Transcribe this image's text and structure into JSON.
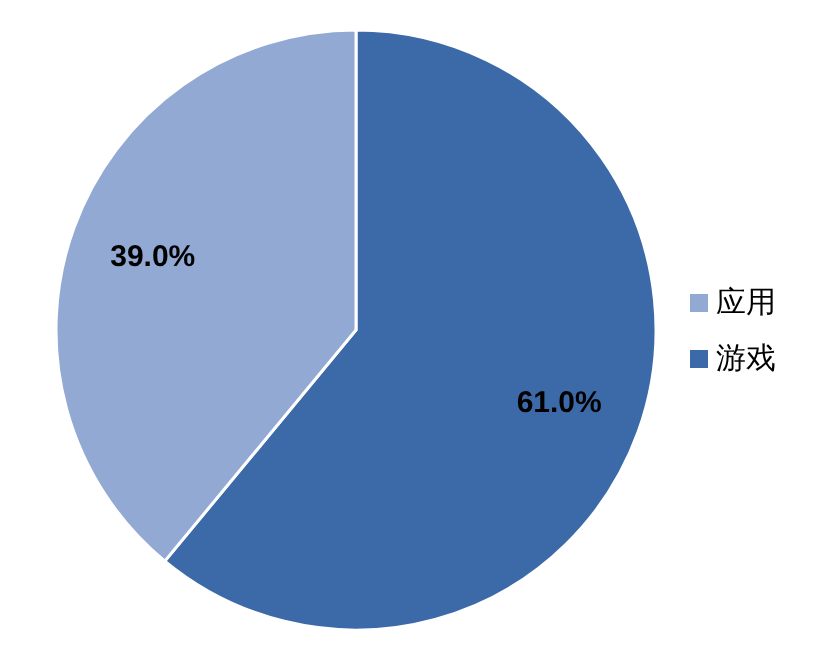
{
  "chart_data": {
    "type": "pie",
    "categories": [
      "游戏",
      "应用"
    ],
    "values": [
      61.0,
      39.0
    ],
    "colors": [
      "#3c6aa8",
      "#92a9d4"
    ],
    "value_labels": [
      "61.0%",
      "39.0%"
    ],
    "legend": "right"
  }
}
